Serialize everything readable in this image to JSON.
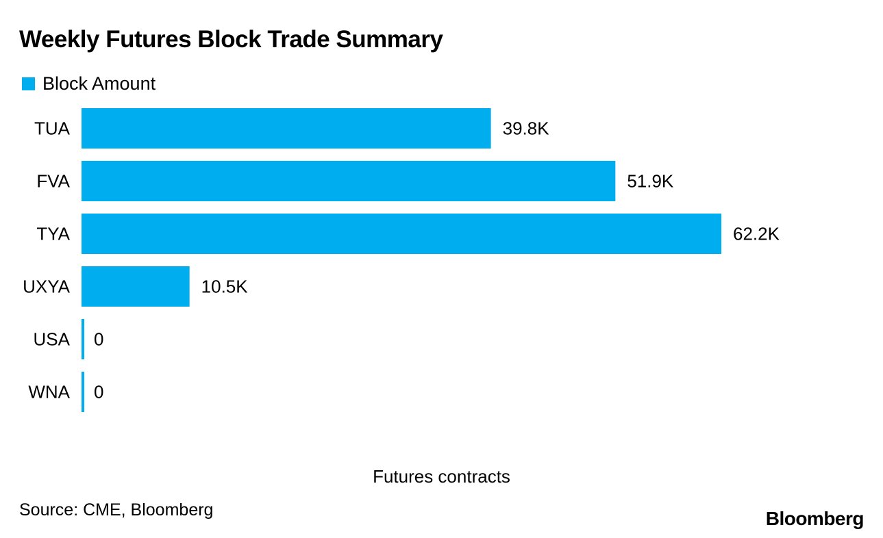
{
  "chart_data": {
    "type": "bar",
    "orientation": "horizontal",
    "title": "Weekly Futures Block Trade Summary",
    "legend": [
      {
        "name": "Block Amount",
        "color": "#00adef"
      }
    ],
    "categories": [
      "TUA",
      "FVA",
      "TYA",
      "UXYA",
      "USA",
      "WNA"
    ],
    "series": [
      {
        "name": "Block Amount",
        "values": [
          39800,
          51900,
          62200,
          10500,
          0,
          0
        ],
        "labels": [
          "39.8K",
          "51.9K",
          "62.2K",
          "10.5K",
          "0",
          "0"
        ]
      }
    ],
    "xlabel": "Futures contracts",
    "ylabel": "",
    "xlim": [
      0,
      62200
    ],
    "grid": false,
    "legend_position": "top-left"
  },
  "source": "Source: CME, Bloomberg",
  "brand": "Bloomberg"
}
